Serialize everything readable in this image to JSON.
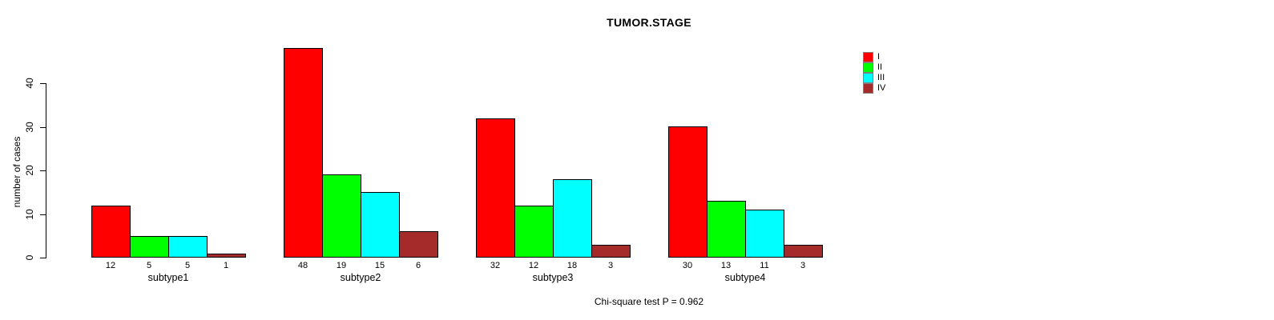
{
  "chart_data": {
    "type": "bar",
    "title": "TUMOR.STAGE",
    "ylabel": "number of cases",
    "xlabel": "",
    "categories": [
      "subtype1",
      "subtype2",
      "subtype3",
      "subtype4"
    ],
    "series": [
      {
        "name": "I",
        "color": "#ff0000",
        "values": [
          12,
          48,
          32,
          30
        ]
      },
      {
        "name": "II",
        "color": "#00ff00",
        "values": [
          5,
          19,
          12,
          13
        ]
      },
      {
        "name": "III",
        "color": "#00ffff",
        "values": [
          5,
          15,
          18,
          11
        ]
      },
      {
        "name": "IV",
        "color": "#a52a2a",
        "values": [
          1,
          6,
          3,
          3
        ]
      }
    ],
    "bar_value_labels": [
      [
        "12",
        "5",
        "5",
        "1"
      ],
      [
        "48",
        "19",
        "15",
        "6"
      ],
      [
        "32",
        "12",
        "18",
        "3"
      ],
      [
        "30",
        "13",
        "11",
        "3"
      ]
    ],
    "yticks": [
      0,
      10,
      20,
      30,
      40
    ],
    "ylim": [
      0,
      48
    ],
    "grid": false,
    "legend_position": "top-right",
    "annotation": "Chi-square test P = 0.962"
  }
}
